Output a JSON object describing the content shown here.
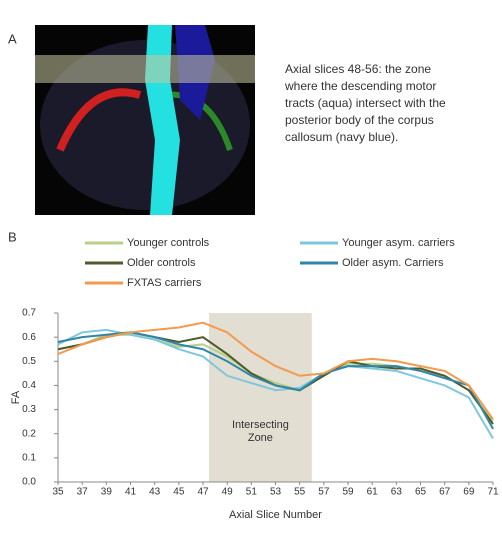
{
  "panel_a": {
    "label": "A",
    "caption": [
      "Axial slices 48-56: the zone",
      "where the descending motor",
      "tracts (aqua) intersect with the",
      "posterior body of the corpus",
      "callosum (navy blue)."
    ]
  },
  "panel_b_label": "B",
  "chart_data": {
    "type": "line",
    "x_label": "Axial Slice Number",
    "y_label": "FA",
    "x": [
      35,
      37,
      39,
      41,
      43,
      45,
      47,
      49,
      51,
      53,
      55,
      57,
      59,
      61,
      63,
      65,
      67,
      69,
      71
    ],
    "xlim": [
      35,
      71
    ],
    "xticks": [
      35,
      37,
      39,
      41,
      43,
      45,
      47,
      49,
      51,
      53,
      55,
      57,
      59,
      61,
      63,
      65,
      67,
      69,
      71
    ],
    "ylim": [
      0,
      0.7
    ],
    "yticks": [
      {
        "value": 0,
        "label": "0.0"
      },
      0.1,
      0.2,
      0.3,
      0.4,
      0.5,
      0.6,
      0.7
    ],
    "highlight": {
      "label": [
        "Intersecting",
        "Zone"
      ],
      "x": [
        47.5,
        56
      ],
      "color": "#e3ded2"
    },
    "series": [
      {
        "name": "Younger controls",
        "color": "#b7cf86",
        "values": [
          0.55,
          0.57,
          0.61,
          0.61,
          0.59,
          0.56,
          0.57,
          0.52,
          0.45,
          0.41,
          0.38,
          0.45,
          0.49,
          0.49,
          0.48,
          0.46,
          0.44,
          0.38,
          0.25
        ]
      },
      {
        "name": "Younger asym. carriers",
        "color": "#7fc6df",
        "values": [
          0.57,
          0.62,
          0.63,
          0.61,
          0.59,
          0.55,
          0.52,
          0.44,
          0.41,
          0.38,
          0.39,
          0.45,
          0.48,
          0.47,
          0.46,
          0.43,
          0.4,
          0.35,
          0.18
        ]
      },
      {
        "name": "Older controls",
        "color": "#4d5a2c",
        "values": [
          0.55,
          0.57,
          0.6,
          0.62,
          0.6,
          0.58,
          0.6,
          0.53,
          0.45,
          0.4,
          0.38,
          0.44,
          0.5,
          0.48,
          0.47,
          0.47,
          0.44,
          0.38,
          0.24
        ]
      },
      {
        "name": "Older asym. Carriers",
        "color": "#2f86a8",
        "values": [
          0.58,
          0.6,
          0.61,
          0.62,
          0.6,
          0.57,
          0.55,
          0.5,
          0.44,
          0.4,
          0.38,
          0.45,
          0.48,
          0.48,
          0.48,
          0.46,
          0.43,
          0.4,
          0.22
        ]
      },
      {
        "name": "FXTAS carriers",
        "color": "#f39a4c",
        "values": [
          0.53,
          0.57,
          0.6,
          0.62,
          0.63,
          0.64,
          0.66,
          0.62,
          0.54,
          0.48,
          0.44,
          0.45,
          0.5,
          0.51,
          0.5,
          0.48,
          0.46,
          0.4,
          0.26
        ]
      }
    ]
  }
}
